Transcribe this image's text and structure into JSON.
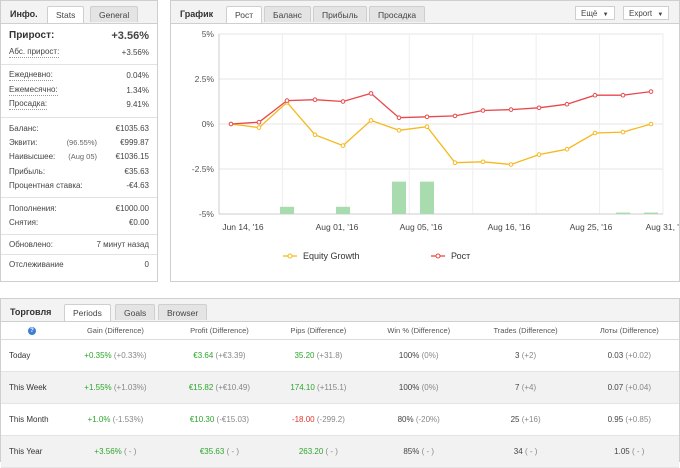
{
  "info": {
    "title": "Инфо.",
    "tabs": [
      {
        "label": "Stats"
      },
      {
        "label": "General"
      }
    ],
    "rows": [
      {
        "label": "Прирост:",
        "value": "+3.56%"
      },
      {
        "label": "Абс. прирост:",
        "value": "+3.56%"
      },
      {
        "label": "Ежедневно:",
        "value": "0.04%"
      },
      {
        "label": "Ежемесячно:",
        "value": "1.34%"
      },
      {
        "label": "Просадка:",
        "value": "9.41%"
      },
      {
        "label": "Баланс:",
        "value": "€1035.63"
      },
      {
        "label": "Эквити:",
        "mid": "(96.55%)",
        "value": "€999.87"
      },
      {
        "label": "Наивысшее:",
        "mid": "(Aug 05)",
        "value": "€1036.15"
      },
      {
        "label": "Прибыль:",
        "value": "€35.63"
      },
      {
        "label": "Процентная ставка:",
        "value": "-€4.63"
      },
      {
        "label": "Пополнения:",
        "value": "€1000.00"
      },
      {
        "label": "Снятия:",
        "value": "€0.00"
      },
      {
        "label": "Обновлено:",
        "value": "7 минут назад"
      },
      {
        "label": "Отслеживание",
        "value": "0"
      }
    ]
  },
  "chart_panel": {
    "title": "График",
    "tabs": [
      {
        "label": "Рост"
      },
      {
        "label": "Баланс"
      },
      {
        "label": "Прибыль"
      },
      {
        "label": "Просадка"
      }
    ],
    "more_label": "Ещё",
    "export_label": "Export",
    "more_arrow": "▼",
    "export_arrow": "▼"
  },
  "chart_data": {
    "type": "line",
    "ylim": [
      -5,
      5
    ],
    "y_ticks": [
      "5%",
      "2.5%",
      "0%",
      "-2.5%",
      "-5%"
    ],
    "x_ticks": [
      "Jun 14, '16",
      "Aug 01, '16",
      "Aug 05, '16",
      "Aug 16, '16",
      "Aug 25, '16",
      "Aug 31, '16"
    ],
    "series": [
      {
        "name": "Equity Growth",
        "color": "#f6b91d",
        "values": [
          0,
          -0.2,
          1.2,
          -0.6,
          -1.2,
          0.2,
          -0.35,
          -0.15,
          -2.15,
          -2.1,
          -2.25,
          -1.7,
          -1.4,
          -0.5,
          -0.45,
          0
        ]
      },
      {
        "name": "Рост",
        "color": "#e8484b",
        "values": [
          0,
          0.1,
          1.3,
          1.35,
          1.25,
          1.7,
          0.35,
          0.4,
          0.45,
          0.75,
          0.8,
          0.9,
          1.1,
          1.6,
          1.6,
          1.8
        ]
      }
    ],
    "bars": [
      0,
      0,
      0.2,
      0,
      0.2,
      0,
      0.9,
      0.9,
      0,
      0,
      0,
      0,
      0,
      0,
      0.04,
      0.04
    ]
  },
  "trading": {
    "title": "Торговля",
    "tabs": [
      {
        "label": "Periods"
      },
      {
        "label": "Goals"
      },
      {
        "label": "Browser"
      }
    ],
    "info_icon": "?",
    "columns": [
      "Gain (Difference)",
      "Profit (Difference)",
      "Pips (Difference)",
      "Win % (Difference)",
      "Trades (Difference)",
      "Лоты (Difference)"
    ],
    "rows": [
      {
        "period": "Today",
        "gain": "+0.35%",
        "gain_diff": "(+0.33%)",
        "profit": "€3.64",
        "profit_diff": "(+€3.39)",
        "pips": "35.20",
        "pips_diff": "(+31.8)",
        "win": "100%",
        "win_diff": "(0%)",
        "trades": "3",
        "trades_diff": "(+2)",
        "lots": "0.03",
        "lots_diff": "(+0.02)"
      },
      {
        "period": "This Week",
        "gain": "+1.55%",
        "gain_diff": "(+1.03%)",
        "profit": "€15.82",
        "profit_diff": "(+€10.49)",
        "pips": "174.10",
        "pips_diff": "(+115.1)",
        "win": "100%",
        "win_diff": "(0%)",
        "trades": "7",
        "trades_diff": "(+4)",
        "lots": "0.07",
        "lots_diff": "(+0.04)"
      },
      {
        "period": "This Month",
        "gain": "+1.0%",
        "gain_diff": "(-1.53%)",
        "profit": "€10.30",
        "profit_diff": "(-€15.03)",
        "pips": "-18.00",
        "pips_diff": "(-299.2)",
        "win": "80%",
        "win_diff": "(-20%)",
        "trades": "25",
        "trades_diff": "(+16)",
        "lots": "0.95",
        "lots_diff": "(+0.85)"
      },
      {
        "period": "This Year",
        "gain": "+3.56%",
        "gain_diff": "( - )",
        "profit": "€35.63",
        "profit_diff": "( - )",
        "pips": "263.20",
        "pips_diff": "( - )",
        "win": "85%",
        "win_diff": "( - )",
        "trades": "34",
        "trades_diff": "( - )",
        "lots": "1.05",
        "lots_diff": "( - )"
      }
    ]
  }
}
